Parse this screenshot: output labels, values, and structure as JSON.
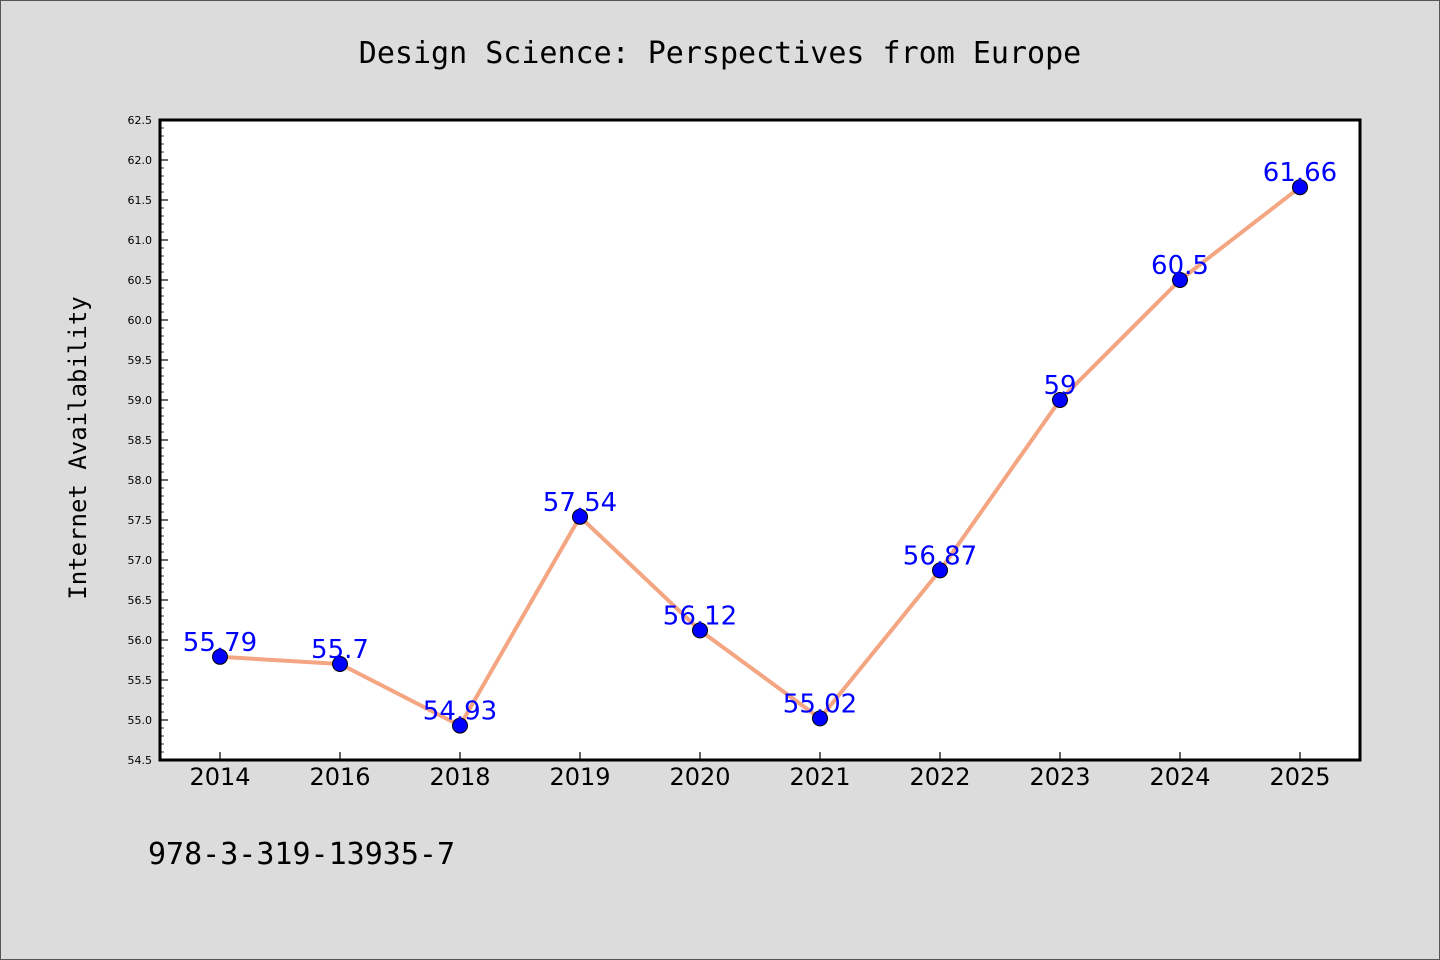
{
  "chart_data": {
    "type": "line",
    "title": "Design Science: Perspectives from Europe",
    "xlabel": "",
    "ylabel": "Internet Availability",
    "categories": [
      "2014",
      "2016",
      "2018",
      "2019",
      "2020",
      "2021",
      "2022",
      "2023",
      "2024",
      "2025"
    ],
    "values": [
      55.79,
      55.7,
      54.93,
      57.54,
      56.12,
      55.02,
      56.87,
      59,
      60.5,
      61.66
    ],
    "data_labels": [
      "55.79",
      "55.7",
      "54.93",
      "57.54",
      "56.12",
      "55.02",
      "56.87",
      "59",
      "60.5",
      "61.66"
    ],
    "ylim": [
      54.5,
      62.5
    ],
    "yticks": [
      "54.5",
      "55.0",
      "55.5",
      "56.0",
      "56.5",
      "57.0",
      "57.5",
      "58.0",
      "58.5",
      "59.0",
      "59.5",
      "60.0",
      "60.5",
      "61.0",
      "61.5",
      "62.0",
      "62.5"
    ],
    "grid": false,
    "legend": "none",
    "colors": {
      "line": "#f4a582",
      "marker": "#0000ff",
      "label": "#0000ff"
    }
  },
  "footer": {
    "text": "978-3-319-13935-7"
  }
}
